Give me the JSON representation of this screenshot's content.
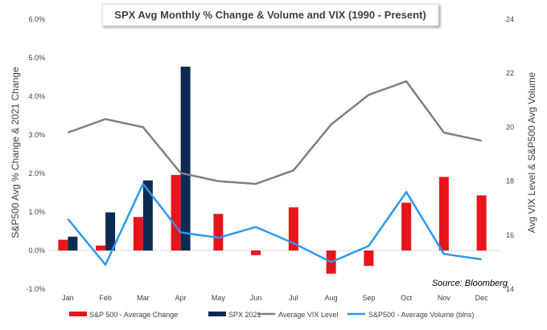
{
  "colors": {
    "sp500_avg": "#e8141b",
    "spx2021": "#0d2b52",
    "vix": "#7f7f7f",
    "volume": "#2b98f0"
  },
  "chart_data": {
    "type": "bar",
    "title": "SPX Avg Monthly % Change & Volume and VIX (1990 - Present)",
    "source": "Source: Bloomberg",
    "categories": [
      "Jan",
      "Feb",
      "Mar",
      "Apr",
      "May",
      "Jun",
      "Jul",
      "Aug",
      "Sep",
      "Oct",
      "Nov",
      "Dec"
    ],
    "ylabel_left": "S&P500 Avg % Change & 2021 Change",
    "ylabel_right": "Avg VIX Level & S&P500 Avg Volume",
    "ylim_left": [
      -1.0,
      6.0
    ],
    "yticks_left": [
      "-1.0%",
      "0.0%",
      "1.0%",
      "2.0%",
      "3.0%",
      "4.0%",
      "5.0%",
      "6.0%"
    ],
    "ylim_right": [
      14,
      24
    ],
    "yticks_right": [
      "14",
      "16",
      "18",
      "20",
      "22",
      "24"
    ],
    "bar_series": [
      {
        "name": "S&P 500 - Average Change",
        "axis": "left",
        "values": [
          0.28,
          0.13,
          0.87,
          1.96,
          0.95,
          -0.12,
          1.12,
          -0.6,
          -0.4,
          1.24,
          1.91,
          1.43
        ]
      },
      {
        "name": "SPX 2021",
        "axis": "left",
        "values": [
          0.36,
          0.99,
          1.82,
          4.77,
          null,
          null,
          null,
          null,
          null,
          null,
          null,
          null
        ]
      }
    ],
    "line_series": [
      {
        "name": "Average VIX Level",
        "axis": "right",
        "values": [
          19.8,
          20.3,
          20.0,
          18.3,
          18.0,
          17.9,
          18.4,
          20.1,
          21.2,
          21.7,
          19.8,
          19.5
        ]
      },
      {
        "name": "S&P500 - Average Volume (blns)",
        "axis": "right",
        "values": [
          16.6,
          14.9,
          17.9,
          16.1,
          15.9,
          16.3,
          15.7,
          15.0,
          15.6,
          17.6,
          15.3,
          15.1
        ]
      }
    ],
    "legend_position": "bottom"
  }
}
